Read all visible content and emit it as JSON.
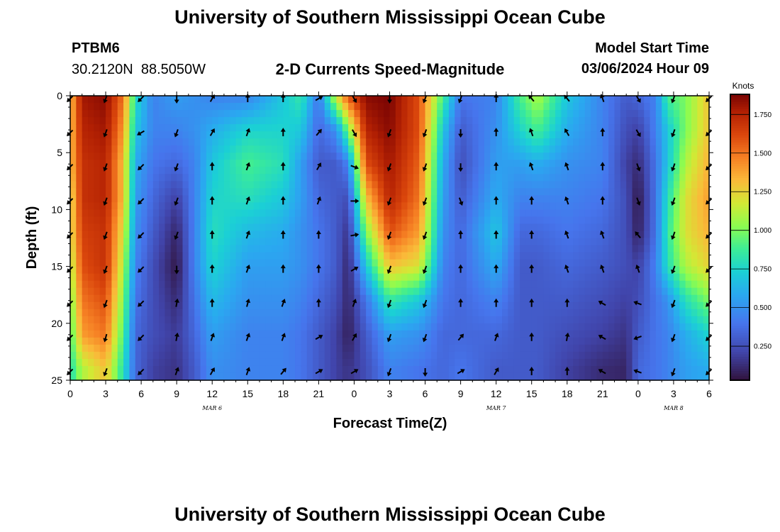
{
  "header": {
    "title": "University of Southern Mississippi Ocean Cube",
    "station_id": "PTBM6",
    "coordinates": "30.2120N  88.5050W",
    "chart_subtitle": "2-D Currents Speed-Magnitude",
    "model_start_label": "Model Start Time",
    "model_start_value": "03/06/2024 Hour 09"
  },
  "footer": {
    "title": "University of Southern Mississippi Ocean Cube"
  },
  "chart_data": {
    "type": "heatmap",
    "title": "2-D Currents Speed-Magnitude",
    "xlabel": "Forecast Time(Z)",
    "ylabel": "Depth (ft)",
    "x_range_hours": [
      0,
      54
    ],
    "x_ticks": [
      {
        "hour": 0,
        "label": "0"
      },
      {
        "hour": 3,
        "label": "3"
      },
      {
        "hour": 6,
        "label": "6"
      },
      {
        "hour": 9,
        "label": "9"
      },
      {
        "hour": 12,
        "label": "12"
      },
      {
        "hour": 15,
        "label": "15"
      },
      {
        "hour": 18,
        "label": "18"
      },
      {
        "hour": 21,
        "label": "21"
      },
      {
        "hour": 24,
        "label": "0"
      },
      {
        "hour": 27,
        "label": "3"
      },
      {
        "hour": 30,
        "label": "6"
      },
      {
        "hour": 33,
        "label": "9"
      },
      {
        "hour": 36,
        "label": "12"
      },
      {
        "hour": 39,
        "label": "15"
      },
      {
        "hour": 42,
        "label": "18"
      },
      {
        "hour": 45,
        "label": "21"
      },
      {
        "hour": 48,
        "label": "0"
      },
      {
        "hour": 51,
        "label": "3"
      },
      {
        "hour": 54,
        "label": "6"
      }
    ],
    "date_labels": [
      {
        "hour": 12,
        "label": "MAR 6"
      },
      {
        "hour": 36,
        "label": "MAR 7"
      },
      {
        "hour": 51,
        "label": "MAR 8"
      }
    ],
    "y_range_ft": [
      0,
      25
    ],
    "y_ticks": [
      0,
      5,
      10,
      15,
      20,
      25
    ],
    "depth_rows_ft": [
      0,
      3,
      6,
      9,
      12,
      15,
      18,
      21,
      24
    ],
    "colorbar": {
      "units": "Knots",
      "min": 0.03,
      "max": 1.88,
      "ticks": [
        "0.250",
        "0.500",
        "0.750",
        "1.000",
        "1.250",
        "1.500",
        "1.750"
      ],
      "tick_values": [
        0.25,
        0.5,
        0.75,
        1.0,
        1.25,
        1.5,
        1.75
      ]
    },
    "speed_profiles_knots": [
      {
        "hour": 0,
        "speeds": [
          1.3,
          1.3,
          1.3,
          1.2,
          1.2,
          1.1,
          1.0,
          0.9,
          0.8
        ]
      },
      {
        "hour": 1,
        "speeds": [
          1.8,
          1.75,
          1.7,
          1.7,
          1.65,
          1.6,
          1.5,
          1.4,
          1.1
        ]
      },
      {
        "hour": 3,
        "speeds": [
          1.85,
          1.8,
          1.75,
          1.75,
          1.7,
          1.7,
          1.6,
          1.5,
          1.3
        ]
      },
      {
        "hour": 4.5,
        "speeds": [
          1.5,
          1.4,
          1.3,
          1.3,
          1.2,
          1.1,
          1.0,
          0.9,
          0.8
        ]
      },
      {
        "hour": 5.5,
        "speeds": [
          0.8,
          0.7,
          0.6,
          0.55,
          0.5,
          0.45,
          0.4,
          0.35,
          0.35
        ]
      },
      {
        "hour": 7,
        "speeds": [
          0.45,
          0.45,
          0.4,
          0.35,
          0.3,
          0.25,
          0.25,
          0.25,
          0.2
        ]
      },
      {
        "hour": 9,
        "speeds": [
          0.55,
          0.45,
          0.35,
          0.2,
          0.1,
          0.05,
          0.12,
          0.18,
          0.15
        ]
      },
      {
        "hour": 10.5,
        "speeds": [
          0.5,
          0.5,
          0.45,
          0.45,
          0.45,
          0.45,
          0.4,
          0.35,
          0.3
        ]
      },
      {
        "hour": 12,
        "speeds": [
          0.45,
          0.6,
          0.7,
          0.75,
          0.8,
          0.75,
          0.65,
          0.55,
          0.5
        ]
      },
      {
        "hour": 15,
        "speeds": [
          0.45,
          0.75,
          0.9,
          0.8,
          0.65,
          0.55,
          0.5,
          0.45,
          0.45
        ]
      },
      {
        "hour": 18,
        "speeds": [
          0.7,
          0.75,
          0.8,
          0.7,
          0.6,
          0.55,
          0.5,
          0.45,
          0.45
        ]
      },
      {
        "hour": 19.5,
        "speeds": [
          0.85,
          0.7,
          0.55,
          0.55,
          0.5,
          0.5,
          0.45,
          0.4,
          0.4
        ]
      },
      {
        "hour": 21,
        "speeds": [
          0.4,
          0.35,
          0.3,
          0.35,
          0.4,
          0.4,
          0.35,
          0.3,
          0.3
        ]
      },
      {
        "hour": 22.5,
        "speeds": [
          1.2,
          0.5,
          0.3,
          0.3,
          0.3,
          0.3,
          0.25,
          0.2,
          0.2
        ]
      },
      {
        "hour": 23.5,
        "speeds": [
          1.6,
          1.0,
          0.45,
          0.25,
          0.15,
          0.1,
          0.1,
          0.08,
          0.15
        ]
      },
      {
        "hour": 25,
        "speeds": [
          1.85,
          1.75,
          1.6,
          1.3,
          1.0,
          0.7,
          0.4,
          0.3,
          0.25
        ]
      },
      {
        "hour": 27,
        "speeds": [
          1.88,
          1.85,
          1.8,
          1.75,
          1.6,
          1.3,
          0.85,
          0.55,
          0.45
        ]
      },
      {
        "hour": 29.5,
        "speeds": [
          1.6,
          1.6,
          1.55,
          1.5,
          1.4,
          1.2,
          0.7,
          0.5,
          0.4
        ]
      },
      {
        "hour": 31.5,
        "speeds": [
          0.9,
          0.7,
          0.6,
          0.55,
          0.5,
          0.45,
          0.4,
          0.35,
          0.35
        ]
      },
      {
        "hour": 33,
        "speeds": [
          0.4,
          0.3,
          0.25,
          0.3,
          0.35,
          0.35,
          0.35,
          0.35,
          0.4
        ]
      },
      {
        "hour": 36,
        "speeds": [
          0.45,
          0.5,
          0.55,
          0.6,
          0.7,
          0.6,
          0.45,
          0.35,
          0.3
        ]
      },
      {
        "hour": 38,
        "speeds": [
          0.9,
          0.75,
          0.55,
          0.45,
          0.35,
          0.3,
          0.3,
          0.3,
          0.3
        ]
      },
      {
        "hour": 39.5,
        "speeds": [
          1.1,
          0.9,
          0.6,
          0.45,
          0.35,
          0.3,
          0.3,
          0.3,
          0.3
        ]
      },
      {
        "hour": 42,
        "speeds": [
          0.7,
          0.6,
          0.5,
          0.45,
          0.4,
          0.35,
          0.3,
          0.25,
          0.2
        ]
      },
      {
        "hour": 45,
        "speeds": [
          0.45,
          0.45,
          0.45,
          0.4,
          0.35,
          0.3,
          0.25,
          0.2,
          0.12
        ]
      },
      {
        "hour": 47,
        "speeds": [
          0.3,
          0.25,
          0.2,
          0.25,
          0.25,
          0.25,
          0.2,
          0.15,
          0.1
        ]
      },
      {
        "hour": 48,
        "speeds": [
          0.35,
          0.2,
          0.12,
          0.05,
          0.08,
          0.2,
          0.25,
          0.3,
          0.35
        ]
      },
      {
        "hour": 49.5,
        "speeds": [
          0.45,
          0.45,
          0.4,
          0.4,
          0.4,
          0.45,
          0.4,
          0.4,
          0.4
        ]
      },
      {
        "hour": 50.5,
        "speeds": [
          0.9,
          0.7,
          0.7,
          0.8,
          0.85,
          0.8,
          0.5,
          0.45,
          0.45
        ]
      },
      {
        "hour": 52,
        "speeds": [
          1.0,
          1.0,
          1.1,
          1.2,
          1.2,
          1.1,
          0.8,
          0.6,
          0.55
        ]
      },
      {
        "hour": 54,
        "speeds": [
          1.3,
          1.3,
          1.35,
          1.4,
          1.35,
          1.25,
          1.0,
          0.75,
          0.6
        ]
      }
    ],
    "vectors": [
      {
        "hour": 0,
        "dirs": [
          225,
          225,
          225,
          225,
          225,
          225,
          225,
          225,
          225
        ]
      },
      {
        "hour": 3,
        "dirs": [
          200,
          200,
          200,
          200,
          200,
          200,
          200,
          195,
          200
        ]
      },
      {
        "hour": 6,
        "dirs": [
          225,
          240,
          225,
          225,
          225,
          225,
          225,
          225,
          225
        ]
      },
      {
        "hour": 9,
        "dirs": [
          180,
          200,
          200,
          200,
          200,
          180,
          10,
          10,
          20
        ]
      },
      {
        "hour": 12,
        "dirs": [
          30,
          30,
          0,
          0,
          0,
          0,
          0,
          20,
          30
        ]
      },
      {
        "hour": 15,
        "dirs": [
          0,
          20,
          20,
          20,
          20,
          20,
          15,
          20,
          20
        ]
      },
      {
        "hour": 18,
        "dirs": [
          0,
          0,
          0,
          0,
          0,
          0,
          20,
          20,
          40
        ]
      },
      {
        "hour": 21,
        "dirs": [
          60,
          40,
          30,
          20,
          0,
          0,
          0,
          60,
          60
        ]
      },
      {
        "hour": 24,
        "dirs": [
          150,
          150,
          110,
          90,
          80,
          60,
          20,
          30,
          60
        ]
      },
      {
        "hour": 27,
        "dirs": [
          180,
          200,
          200,
          200,
          200,
          200,
          200,
          200,
          200
        ]
      },
      {
        "hour": 30,
        "dirs": [
          200,
          200,
          200,
          200,
          200,
          200,
          200,
          200,
          180
        ]
      },
      {
        "hour": 33,
        "dirs": [
          200,
          180,
          180,
          160,
          0,
          0,
          0,
          40,
          60
        ]
      },
      {
        "hour": 36,
        "dirs": [
          0,
          0,
          0,
          0,
          0,
          0,
          0,
          20,
          30
        ]
      },
      {
        "hour": 39,
        "dirs": [
          320,
          340,
          340,
          0,
          0,
          0,
          0,
          0,
          0
        ]
      },
      {
        "hour": 42,
        "dirs": [
          320,
          330,
          340,
          340,
          340,
          340,
          0,
          10,
          0
        ]
      },
      {
        "hour": 45,
        "dirs": [
          340,
          0,
          0,
          0,
          340,
          340,
          300,
          300,
          300
        ]
      },
      {
        "hour": 48,
        "dirs": [
          150,
          150,
          160,
          160,
          320,
          340,
          290,
          250,
          290
        ]
      },
      {
        "hour": 51,
        "dirs": [
          200,
          200,
          200,
          200,
          200,
          200,
          200,
          200,
          200
        ]
      },
      {
        "hour": 54,
        "dirs": [
          225,
          225,
          225,
          225,
          225,
          225,
          225,
          225,
          225
        ]
      }
    ]
  }
}
